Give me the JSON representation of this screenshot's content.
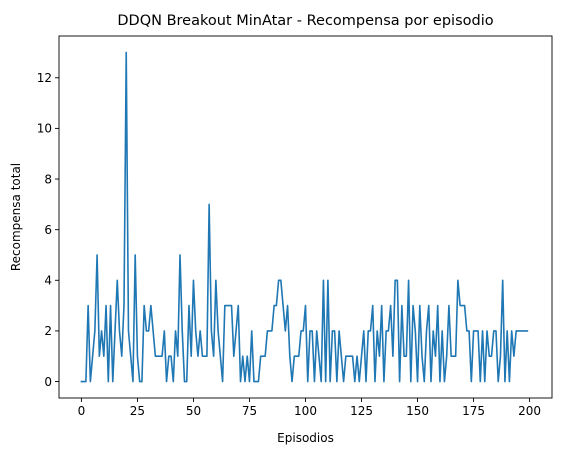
{
  "chart_data": {
    "type": "line",
    "title": "DDQN Breakout MinAtar - Recompensa por episodio",
    "xlabel": "Episodios",
    "ylabel": "Recompensa total",
    "xlim": [
      -10,
      210
    ],
    "ylim": [
      -0.65,
      13.65
    ],
    "xticks": [
      0,
      25,
      50,
      75,
      100,
      125,
      150,
      175,
      200
    ],
    "yticks": [
      0,
      2,
      4,
      6,
      8,
      10,
      12
    ],
    "grid": false,
    "series": [
      {
        "color": "#1f77b4",
        "x": [
          0,
          1,
          2,
          3,
          4,
          5,
          6,
          7,
          8,
          9,
          10,
          11,
          12,
          13,
          14,
          15,
          16,
          17,
          18,
          19,
          20,
          21,
          22,
          23,
          24,
          25,
          26,
          27,
          28,
          29,
          30,
          31,
          32,
          33,
          34,
          35,
          36,
          37,
          38,
          39,
          40,
          41,
          42,
          43,
          44,
          45,
          46,
          47,
          48,
          49,
          50,
          51,
          52,
          53,
          54,
          55,
          56,
          57,
          58,
          59,
          60,
          61,
          62,
          63,
          64,
          65,
          66,
          67,
          68,
          69,
          70,
          71,
          72,
          73,
          74,
          75,
          76,
          77,
          78,
          79,
          80,
          81,
          82,
          83,
          84,
          85,
          86,
          87,
          88,
          89,
          90,
          91,
          92,
          93,
          94,
          95,
          96,
          97,
          98,
          99,
          100,
          101,
          102,
          103,
          104,
          105,
          106,
          107,
          108,
          109,
          110,
          111,
          112,
          113,
          114,
          115,
          116,
          117,
          118,
          119,
          120,
          121,
          122,
          123,
          124,
          125,
          126,
          127,
          128,
          129,
          130,
          131,
          132,
          133,
          134,
          135,
          136,
          137,
          138,
          139,
          140,
          141,
          142,
          143,
          144,
          145,
          146,
          147,
          148,
          149,
          150,
          151,
          152,
          153,
          154,
          155,
          156,
          157,
          158,
          159,
          160,
          161,
          162,
          163,
          164,
          165,
          166,
          167,
          168,
          169,
          170,
          171,
          172,
          173,
          174,
          175,
          176,
          177,
          178,
          179,
          180,
          181,
          182,
          183,
          184,
          185,
          186,
          187,
          188,
          189,
          190,
          191,
          192,
          193,
          194,
          195,
          196,
          197,
          198,
          199
        ],
        "y": [
          0,
          0,
          0,
          3,
          0,
          1,
          2,
          5,
          1,
          2,
          1,
          3,
          0,
          3,
          0,
          2,
          4,
          2,
          1,
          3,
          13,
          2,
          1,
          0,
          5,
          1,
          0,
          0,
          3,
          2,
          2,
          3,
          2,
          1,
          1,
          1,
          1,
          2,
          0,
          1,
          1,
          0,
          2,
          1,
          5,
          2,
          0,
          0,
          3,
          1,
          4,
          2,
          1,
          2,
          1,
          1,
          1,
          7,
          2,
          1,
          4,
          2,
          1,
          0,
          3,
          3,
          3,
          3,
          1,
          2,
          3,
          0,
          1,
          0,
          1,
          0,
          2,
          0,
          0,
          0,
          1,
          1,
          1,
          2,
          2,
          2,
          3,
          3,
          4,
          4,
          3,
          2,
          3,
          1,
          0,
          1,
          1,
          1,
          2,
          2,
          3,
          0,
          2,
          2,
          0,
          2,
          1,
          0,
          4,
          0,
          4,
          0,
          2,
          2,
          0,
          2,
          1,
          0,
          1,
          1,
          1,
          1,
          0,
          1,
          0,
          1,
          2,
          0,
          2,
          2,
          3,
          0,
          2,
          1,
          3,
          0,
          2,
          2,
          3,
          1,
          4,
          4,
          0,
          3,
          1,
          1,
          4,
          0,
          3,
          2,
          0,
          3,
          1,
          0,
          2,
          3,
          0,
          2,
          1,
          3,
          0,
          2,
          0,
          1,
          3,
          1,
          1,
          1,
          4,
          3,
          3,
          3,
          2,
          2,
          0,
          2,
          2,
          2,
          0,
          2,
          0,
          2,
          1,
          1,
          2,
          2,
          0,
          1,
          4,
          0,
          2,
          0,
          2,
          1,
          2,
          2,
          2,
          2,
          2,
          2
        ]
      }
    ]
  }
}
